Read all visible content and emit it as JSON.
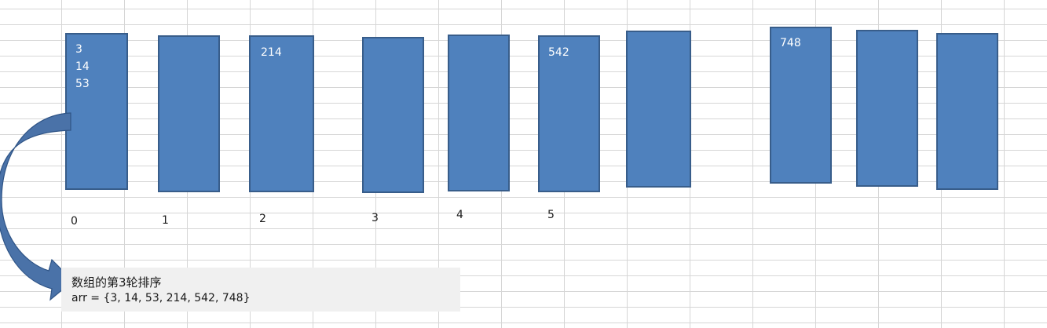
{
  "buckets": [
    {
      "values": [
        "3",
        "14",
        "53"
      ]
    },
    {
      "values": []
    },
    {
      "values": [
        "214"
      ]
    },
    {
      "values": []
    },
    {
      "values": []
    },
    {
      "values": [
        "542"
      ]
    },
    {
      "values": []
    },
    {
      "values": [
        "748"
      ]
    },
    {
      "values": []
    },
    {
      "values": []
    }
  ],
  "indices": [
    "0",
    "1",
    "2",
    "3",
    "4",
    "5"
  ],
  "note": {
    "title": "数组的第3轮排序",
    "arr": "arr = {3, 14, 53, 214, 542, 748}"
  },
  "colors": {
    "bucket_fill": "#4f81bd",
    "bucket_border": "#385d8a",
    "arrow": "#4a72a8",
    "grid": "#d6d6d6"
  }
}
